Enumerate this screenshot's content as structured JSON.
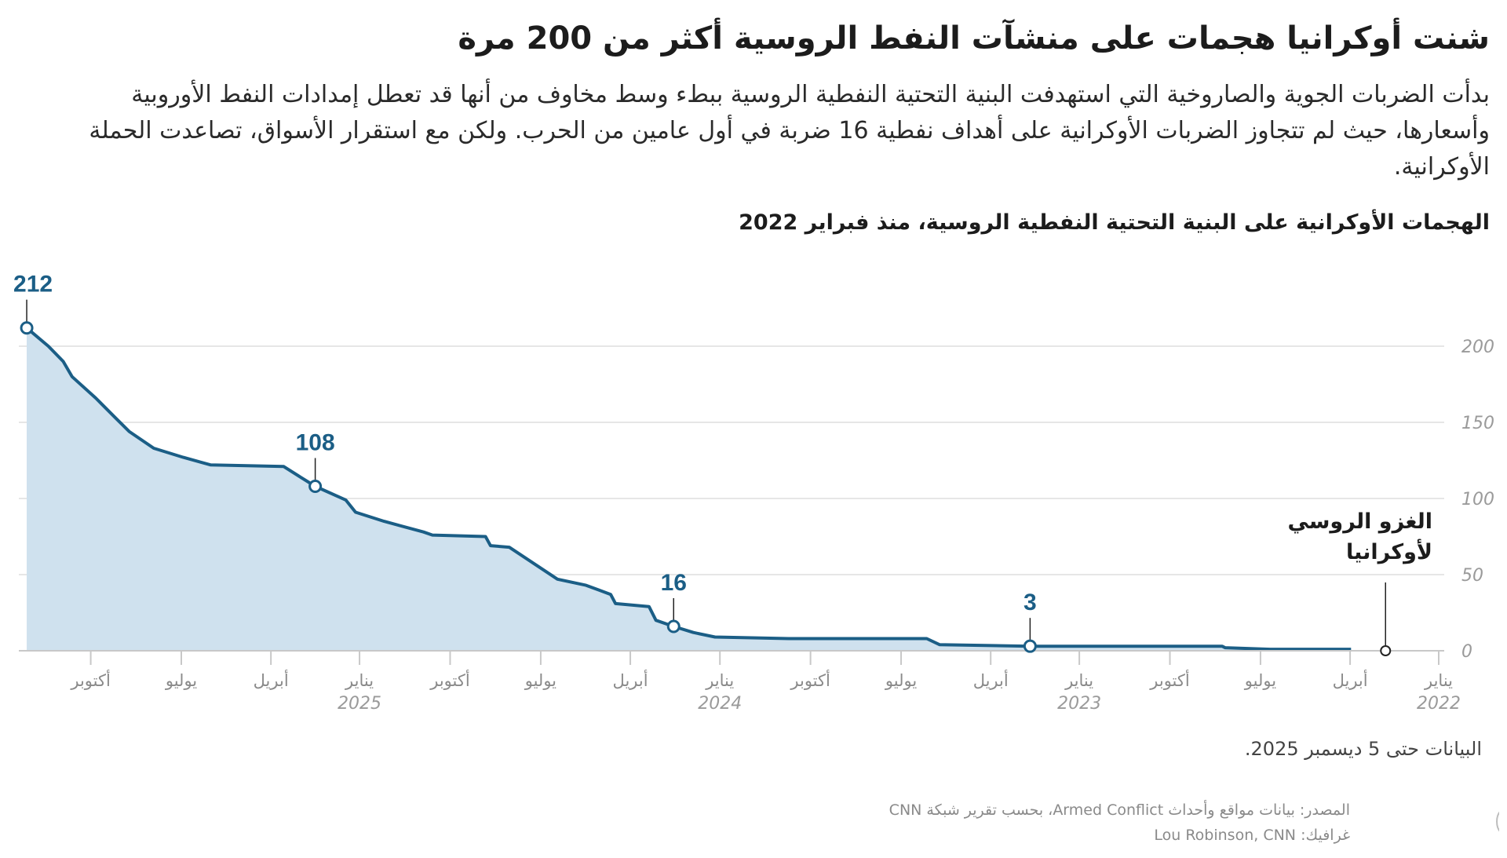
{
  "header": {
    "title": "شنت أوكرانيا هجمات على منشآت النفط الروسية أكثر من 200 مرة",
    "body": "بدأت الضربات الجوية والصاروخية التي استهدفت البنية التحتية النفطية الروسية ببطء وسط مخاوف من أنها قد تعطل إمدادات النفط الأوروبية وأسعارها، حيث لم تتجاوز الضربات الأوكرانية على أهداف نفطية 16 ضربة في أول عامين من الحرب. ولكن مع استقرار الأسواق، تصاعدت الحملة الأوكرانية.",
    "subtitle": "الهجمات الأوكرانية على البنية التحتية النفطية الروسية، منذ فبراير 2022"
  },
  "footer": {
    "note": "البيانات حتى 5 ديسمبر 2025.",
    "source": "المصدر: بيانات مواقع وأحداث Armed Conflict، بحسب تقرير شبكة CNN",
    "credit": "غرافيك: Lou Robinson, CNN",
    "logo_text": "بالعربية CNN"
  },
  "colors": {
    "line": "#1b5e86",
    "fill": "#cfe1ee",
    "annotation": "#1b5e86",
    "grid": "#e6e6e6",
    "axis": "#c8c8c8"
  },
  "chart_data": {
    "type": "area",
    "xaxis": "date (reversed, newest on left)",
    "xlim": [
      "2022-01-01",
      "2025-12-05"
    ],
    "ylim": [
      0,
      212
    ],
    "grid": true,
    "yticks": [
      0,
      50,
      100,
      150,
      200
    ],
    "xticks": [
      {
        "date": "2022-01-01",
        "label": "يناير",
        "year": "2022"
      },
      {
        "date": "2022-04-01",
        "label": "أبريل"
      },
      {
        "date": "2022-07-01",
        "label": "يوليو"
      },
      {
        "date": "2022-10-01",
        "label": "أكتوبر"
      },
      {
        "date": "2023-01-01",
        "label": "يناير",
        "year": "2023"
      },
      {
        "date": "2023-04-01",
        "label": "أبريل"
      },
      {
        "date": "2023-07-01",
        "label": "يوليو"
      },
      {
        "date": "2023-10-01",
        "label": "أكتوبر"
      },
      {
        "date": "2024-01-01",
        "label": "يناير",
        "year": "2024"
      },
      {
        "date": "2024-04-01",
        "label": "أبريل"
      },
      {
        "date": "2024-07-01",
        "label": "يوليو"
      },
      {
        "date": "2024-10-01",
        "label": "أكتوبر"
      },
      {
        "date": "2025-01-01",
        "label": "يناير",
        "year": "2025"
      },
      {
        "date": "2025-04-01",
        "label": "أبريل"
      },
      {
        "date": "2025-07-01",
        "label": "يوليو"
      },
      {
        "date": "2025-10-01",
        "label": "أكتوبر"
      }
    ],
    "points": [
      [
        "2022-03-31",
        1
      ],
      [
        "2022-06-21",
        1
      ],
      [
        "2022-08-06",
        2
      ],
      [
        "2022-08-09",
        3
      ],
      [
        "2023-02-20",
        3
      ],
      [
        "2023-05-23",
        4
      ],
      [
        "2023-06-05",
        8
      ],
      [
        "2023-10-23",
        8
      ],
      [
        "2024-01-06",
        9
      ],
      [
        "2024-01-28",
        12
      ],
      [
        "2024-02-17",
        16
      ],
      [
        "2024-03-06",
        20
      ],
      [
        "2024-03-13",
        29
      ],
      [
        "2024-04-16",
        31
      ],
      [
        "2024-04-21",
        37
      ],
      [
        "2024-05-16",
        43
      ],
      [
        "2024-06-14",
        47
      ],
      [
        "2024-06-28",
        53
      ],
      [
        "2024-08-02",
        68
      ],
      [
        "2024-08-21",
        69
      ],
      [
        "2024-08-26",
        75
      ],
      [
        "2024-10-19",
        76
      ],
      [
        "2024-10-28",
        78
      ],
      [
        "2024-12-07",
        85
      ],
      [
        "2025-01-05",
        91
      ],
      [
        "2025-01-15",
        99
      ],
      [
        "2025-02-15",
        108
      ],
      [
        "2025-03-02",
        114
      ],
      [
        "2025-03-19",
        121
      ],
      [
        "2025-06-01",
        122
      ],
      [
        "2025-06-29",
        127
      ],
      [
        "2025-07-29",
        133
      ],
      [
        "2025-08-23",
        144
      ],
      [
        "2025-09-06",
        153
      ],
      [
        "2025-09-26",
        166
      ],
      [
        "2025-10-20",
        180
      ],
      [
        "2025-10-29",
        190
      ],
      [
        "2025-11-13",
        200
      ],
      [
        "2025-12-05",
        212
      ]
    ],
    "annotations": [
      {
        "date": "2025-12-05",
        "value": 212,
        "label": "212"
      },
      {
        "date": "2025-02-15",
        "value": 108,
        "label": "108"
      },
      {
        "date": "2024-02-17",
        "value": 16,
        "label": "16"
      },
      {
        "date": "2023-02-20",
        "value": 3,
        "label": "3"
      }
    ],
    "event": {
      "date": "2022-02-24",
      "label_line1": "الغزو الروسي",
      "label_line2": "لأوكرانيا"
    }
  }
}
